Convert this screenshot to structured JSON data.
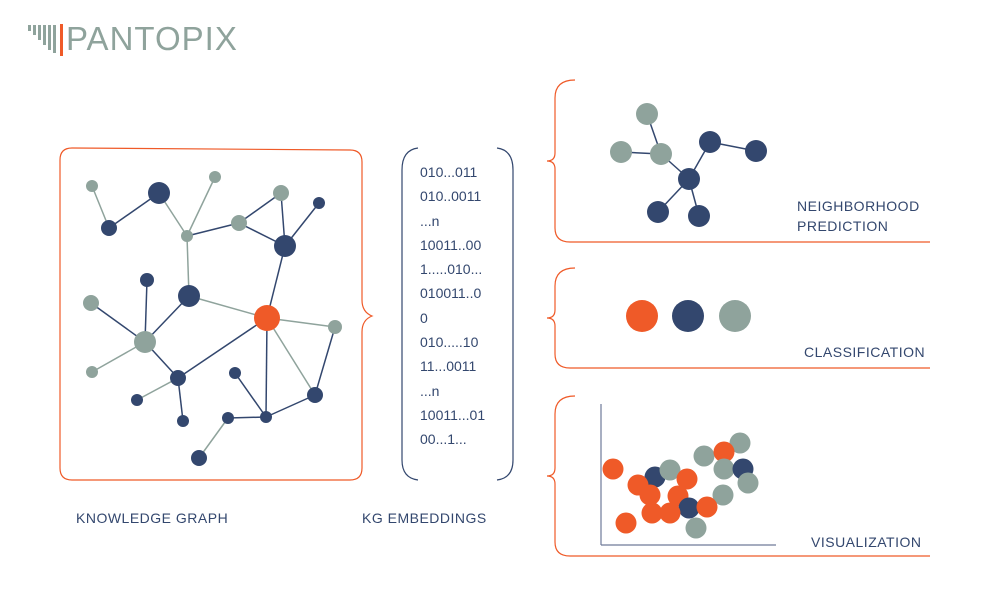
{
  "logo": {
    "text": "PANTOPIX"
  },
  "colors": {
    "navy": "#33476e",
    "gray": "#8fa39c",
    "orange": "#ef5a28"
  },
  "labels": {
    "knowledge_graph": "KNOWLEDGE GRAPH",
    "kg_embeddings": "KG EMBEDDINGS",
    "neighborhood_1": "NEIGHBORHOOD",
    "neighborhood_2": "PREDICTION",
    "classification": "CLASSIFICATION",
    "visualization": "VISUALIZATION"
  },
  "embeddings": [
    "010...011",
    "010..0011",
    "...n",
    "10011..00",
    "1.....010...",
    "010011..0",
    "0",
    "010.....10",
    "11...0011",
    "...n",
    "10011...01",
    "00...1..."
  ]
}
